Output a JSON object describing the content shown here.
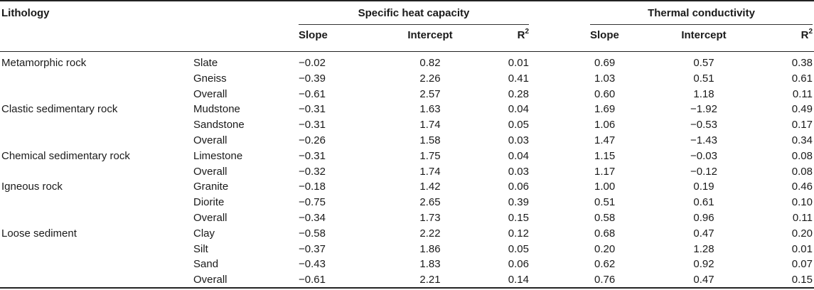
{
  "header": {
    "lithology": "Lithology",
    "group1": "Specific heat capacity",
    "group2": "Thermal conductivity",
    "slope": "Slope",
    "intercept": "Intercept",
    "r_base": "R",
    "r_sup": "2"
  },
  "rows": [
    {
      "group": "Metamorphic rock",
      "type": "Slate",
      "s1": "−0.02",
      "i1": "0.82",
      "r1": "0.01",
      "s2": "0.69",
      "i2": "0.57",
      "r2": "0.38"
    },
    {
      "group": "",
      "type": "Gneiss",
      "s1": "−0.39",
      "i1": "2.26",
      "r1": "0.41",
      "s2": "1.03",
      "i2": "0.51",
      "r2": "0.61"
    },
    {
      "group": "",
      "type": "Overall",
      "s1": "−0.61",
      "i1": "2.57",
      "r1": "0.28",
      "s2": "0.60",
      "i2": "1.18",
      "r2": "0.11"
    },
    {
      "group": "Clastic sedimentary rock",
      "type": "Mudstone",
      "s1": "−0.31",
      "i1": "1.63",
      "r1": "0.04",
      "s2": "1.69",
      "i2": "−1.92",
      "r2": "0.49"
    },
    {
      "group": "",
      "type": "Sandstone",
      "s1": "−0.31",
      "i1": "1.74",
      "r1": "0.05",
      "s2": "1.06",
      "i2": "−0.53",
      "r2": "0.17"
    },
    {
      "group": "",
      "type": "Overall",
      "s1": "−0.26",
      "i1": "1.58",
      "r1": "0.03",
      "s2": "1.47",
      "i2": "−1.43",
      "r2": "0.34"
    },
    {
      "group": "Chemical sedimentary rock",
      "type": "Limestone",
      "s1": "−0.31",
      "i1": "1.75",
      "r1": "0.04",
      "s2": "1.15",
      "i2": "−0.03",
      "r2": "0.08"
    },
    {
      "group": "",
      "type": "Overall",
      "s1": "−0.32",
      "i1": "1.74",
      "r1": "0.03",
      "s2": "1.17",
      "i2": "−0.12",
      "r2": "0.08"
    },
    {
      "group": "Igneous rock",
      "type": "Granite",
      "s1": "−0.18",
      "i1": "1.42",
      "r1": "0.06",
      "s2": "1.00",
      "i2": "0.19",
      "r2": "0.46"
    },
    {
      "group": "",
      "type": "Diorite",
      "s1": "−0.75",
      "i1": "2.65",
      "r1": "0.39",
      "s2": "0.51",
      "i2": "0.61",
      "r2": "0.10"
    },
    {
      "group": "",
      "type": "Overall",
      "s1": "−0.34",
      "i1": "1.73",
      "r1": "0.15",
      "s2": "0.58",
      "i2": "0.96",
      "r2": "0.11"
    },
    {
      "group": "Loose sediment",
      "type": "Clay",
      "s1": "−0.58",
      "i1": "2.22",
      "r1": "0.12",
      "s2": "0.68",
      "i2": "0.47",
      "r2": "0.20"
    },
    {
      "group": "",
      "type": "Silt",
      "s1": "−0.37",
      "i1": "1.86",
      "r1": "0.05",
      "s2": "0.20",
      "i2": "1.28",
      "r2": "0.01"
    },
    {
      "group": "",
      "type": "Sand",
      "s1": "−0.43",
      "i1": "1.83",
      "r1": "0.06",
      "s2": "0.62",
      "i2": "0.92",
      "r2": "0.07"
    },
    {
      "group": "",
      "type": "Overall",
      "s1": "−0.61",
      "i1": "2.21",
      "r1": "0.14",
      "s2": "0.76",
      "i2": "0.47",
      "r2": "0.15"
    }
  ]
}
